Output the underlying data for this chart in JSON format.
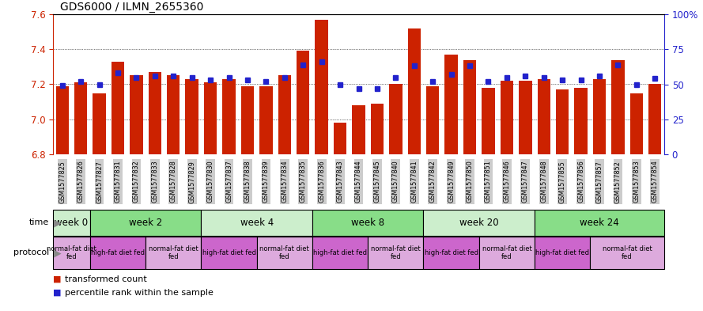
{
  "title": "GDS6000 / ILMN_2655360",
  "samples": [
    "GSM1577825",
    "GSM1577826",
    "GSM1577827",
    "GSM1577831",
    "GSM1577832",
    "GSM1577833",
    "GSM1577828",
    "GSM1577829",
    "GSM1577830",
    "GSM1577837",
    "GSM1577838",
    "GSM1577839",
    "GSM1577834",
    "GSM1577835",
    "GSM1577836",
    "GSM1577843",
    "GSM1577844",
    "GSM1577845",
    "GSM1577840",
    "GSM1577841",
    "GSM1577842",
    "GSM1577849",
    "GSM1577850",
    "GSM1577851",
    "GSM1577846",
    "GSM1577847",
    "GSM1577848",
    "GSM1577855",
    "GSM1577856",
    "GSM1577857",
    "GSM1577852",
    "GSM1577853",
    "GSM1577854"
  ],
  "red_values": [
    7.19,
    7.21,
    7.15,
    7.33,
    7.25,
    7.27,
    7.25,
    7.23,
    7.21,
    7.23,
    7.19,
    7.19,
    7.25,
    7.39,
    7.57,
    6.98,
    7.08,
    7.09,
    7.2,
    7.52,
    7.19,
    7.37,
    7.34,
    7.18,
    7.22,
    7.22,
    7.23,
    7.17,
    7.18,
    7.23,
    7.34,
    7.15,
    7.2
  ],
  "blue_values": [
    49,
    52,
    50,
    58,
    55,
    56,
    56,
    55,
    53,
    55,
    53,
    52,
    55,
    64,
    66,
    50,
    47,
    47,
    55,
    63,
    52,
    57,
    63,
    52,
    55,
    56,
    55,
    53,
    53,
    56,
    64,
    50,
    54
  ],
  "ylim_left": [
    6.8,
    7.6
  ],
  "ylim_right": [
    0,
    100
  ],
  "yticks_left": [
    6.8,
    7.0,
    7.2,
    7.4,
    7.6
  ],
  "yticks_right": [
    0,
    25,
    50,
    75,
    100
  ],
  "ytick_labels_right": [
    "0",
    "25",
    "50",
    "75",
    "100%"
  ],
  "bar_color": "#cc2200",
  "dot_color": "#2222cc",
  "background_color": "#ffffff",
  "xtick_bg_color": "#cccccc",
  "time_groups": [
    {
      "label": "week 0",
      "start": 0,
      "end": 2,
      "color": "#cceecc"
    },
    {
      "label": "week 2",
      "start": 2,
      "end": 8,
      "color": "#88dd88"
    },
    {
      "label": "week 4",
      "start": 8,
      "end": 14,
      "color": "#cceecc"
    },
    {
      "label": "week 8",
      "start": 14,
      "end": 20,
      "color": "#88dd88"
    },
    {
      "label": "week 20",
      "start": 20,
      "end": 26,
      "color": "#cceecc"
    },
    {
      "label": "week 24",
      "start": 26,
      "end": 33,
      "color": "#88dd88"
    }
  ],
  "protocol_groups": [
    {
      "label": "normal-fat diet\nfed",
      "start": 0,
      "end": 2,
      "color": "#ddaadd"
    },
    {
      "label": "high-fat diet fed",
      "start": 2,
      "end": 5,
      "color": "#cc66cc"
    },
    {
      "label": "normal-fat diet\nfed",
      "start": 5,
      "end": 8,
      "color": "#ddaadd"
    },
    {
      "label": "high-fat diet fed",
      "start": 8,
      "end": 11,
      "color": "#cc66cc"
    },
    {
      "label": "normal-fat diet\nfed",
      "start": 11,
      "end": 14,
      "color": "#ddaadd"
    },
    {
      "label": "high-fat diet fed",
      "start": 14,
      "end": 17,
      "color": "#cc66cc"
    },
    {
      "label": "normal-fat diet\nfed",
      "start": 17,
      "end": 20,
      "color": "#ddaadd"
    },
    {
      "label": "high-fat diet fed",
      "start": 20,
      "end": 23,
      "color": "#cc66cc"
    },
    {
      "label": "normal-fat diet\nfed",
      "start": 23,
      "end": 26,
      "color": "#ddaadd"
    },
    {
      "label": "high-fat diet fed",
      "start": 26,
      "end": 29,
      "color": "#cc66cc"
    },
    {
      "label": "normal-fat diet\nfed",
      "start": 29,
      "end": 33,
      "color": "#ddaadd"
    }
  ]
}
